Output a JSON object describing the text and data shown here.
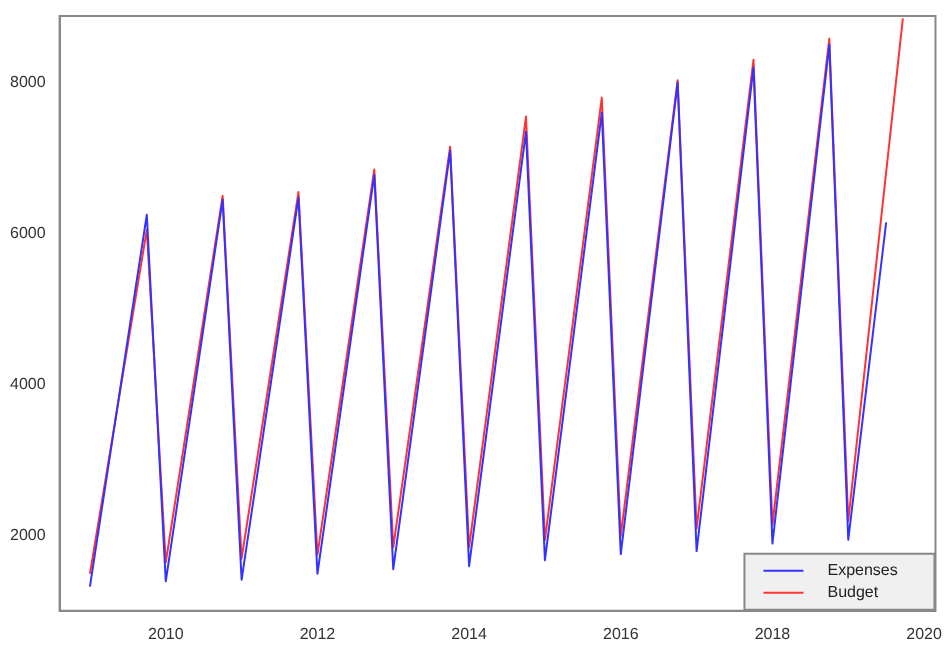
{
  "chart_data": {
    "type": "line",
    "legend": "bottom right",
    "grid": false,
    "marker": "none",
    "line_style": "solid",
    "xlim": [
      2008.6,
      2020.15
    ],
    "xticks": [
      2010,
      2012,
      2014,
      2016,
      2018,
      2020
    ],
    "ylim": [
      1010,
      8880
    ],
    "yticks": [
      2000,
      4000,
      6000,
      8000
    ],
    "series": [
      {
        "name": "Expenses",
        "color": "#3333ff",
        "x": [
          2009,
          2009.75,
          2010,
          2010.75,
          2011,
          2011.75,
          2012,
          2012.75,
          2013,
          2013.75,
          2014,
          2014.75,
          2015,
          2015.75,
          2016,
          2016.75,
          2017,
          2017.75,
          2018,
          2018.75,
          2019,
          2019.5
        ],
        "values": [
          1330,
          6250,
          1400,
          6450,
          1420,
          6480,
          1500,
          6780,
          1560,
          7100,
          1600,
          7350,
          1680,
          7600,
          1760,
          8000,
          1800,
          8200,
          1900,
          8500,
          1950,
          6150
        ]
      },
      {
        "name": "Budget",
        "color": "#ff3333",
        "x": [
          2009,
          2009.75,
          2010,
          2010.75,
          2011,
          2011.75,
          2012,
          2012.75,
          2013,
          2013.75,
          2014,
          2014.75,
          2015,
          2015.75,
          2016,
          2016.75,
          2017,
          2017.75,
          2018,
          2018.75,
          2019,
          2019.72
        ],
        "values": [
          1500,
          6050,
          1650,
          6500,
          1700,
          6550,
          1750,
          6850,
          1850,
          7150,
          1850,
          7550,
          1950,
          7800,
          2000,
          8030,
          2100,
          8300,
          2150,
          8580,
          2200,
          8850
        ]
      }
    ]
  }
}
